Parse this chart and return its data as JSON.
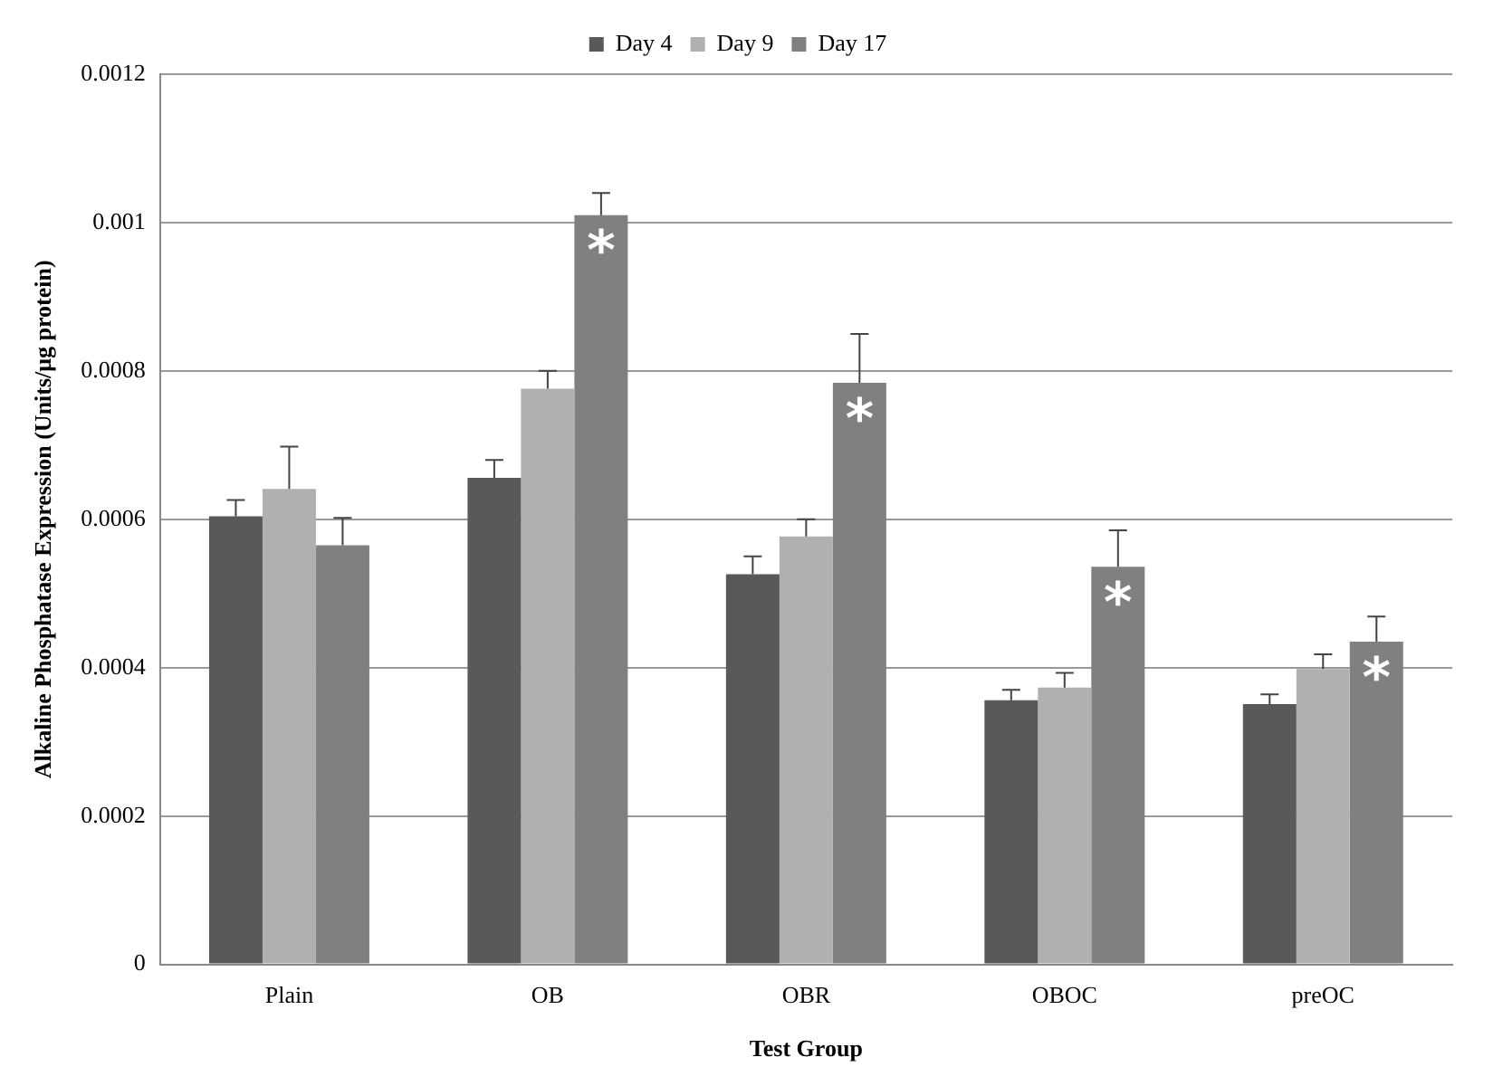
{
  "chart_data": {
    "type": "bar",
    "xlabel": "Test Group",
    "ylabel": "Alkaline Phosphatase Expression (Units/μg protein)",
    "categories": [
      "Plain",
      "OB",
      "OBR",
      "OBOC",
      "preOC"
    ],
    "series": [
      {
        "name": "Day 4",
        "color": "#595959",
        "values": [
          0.000604,
          0.000656,
          0.000526,
          0.000356,
          0.000351
        ],
        "errors": [
          [
            0.000604,
            0.000626
          ],
          [
            0.000656,
            0.00068
          ],
          [
            0.000526,
            0.00055
          ],
          [
            0.000356,
            0.00037
          ],
          [
            0.000351,
            0.000364
          ]
        ]
      },
      {
        "name": "Day 9",
        "color": "#b0b0b0",
        "values": [
          0.000641,
          0.000776,
          0.000577,
          0.000373,
          0.000398
        ],
        "errors": [
          [
            0.000641,
            0.000698
          ],
          [
            0.000776,
            0.0008
          ],
          [
            0.000577,
            0.0006
          ],
          [
            0.000373,
            0.000393
          ],
          [
            0.000398,
            0.000418
          ]
        ]
      },
      {
        "name": "Day 17",
        "color": "#808080",
        "values": [
          0.000565,
          0.00101,
          0.000784,
          0.000536,
          0.000435
        ],
        "value_labels": [
          null,
          "*",
          "*",
          "*",
          "*"
        ],
        "errors": [
          [
            0.000565,
            0.000602
          ],
          [
            0.00101,
            0.00104
          ],
          [
            0.000784,
            0.00085
          ],
          [
            0.000536,
            0.000585
          ],
          [
            0.000435,
            0.000469
          ]
        ]
      }
    ],
    "ylim": [
      0,
      0.0012
    ],
    "yticks": [
      0,
      0.0002,
      0.0004,
      0.0006,
      0.0008,
      0.001,
      0.0012
    ],
    "grid": "y",
    "legend": "top"
  }
}
